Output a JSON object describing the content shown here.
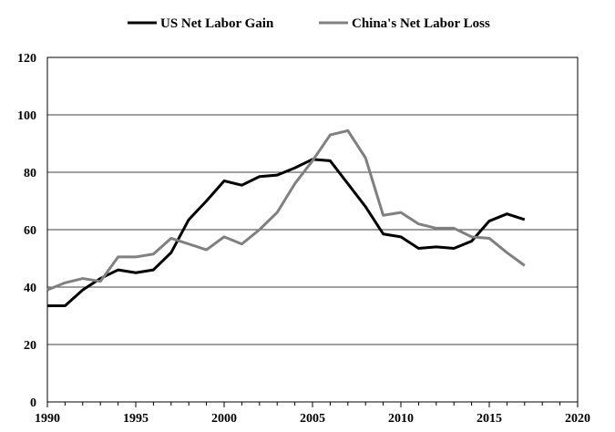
{
  "chart_data": {
    "type": "line",
    "title": "",
    "xlabel": "",
    "ylabel": "",
    "xlim": [
      1990,
      2020
    ],
    "ylim": [
      0,
      120
    ],
    "x_ticks": [
      1990,
      1995,
      2000,
      2005,
      2010,
      2015,
      2020
    ],
    "y_ticks": [
      0,
      20,
      40,
      60,
      80,
      100,
      120
    ],
    "x_tick_labels": [
      "1990",
      "1995",
      "2000",
      "2005",
      "2010",
      "2015",
      "2020"
    ],
    "y_tick_labels": [
      "0",
      "20",
      "40",
      "60",
      "80",
      "100",
      "120"
    ],
    "grid": "horizontal",
    "legend_position": "top",
    "x": [
      1990,
      1991,
      1992,
      1993,
      1994,
      1995,
      1996,
      1997,
      1998,
      1999,
      2000,
      2001,
      2002,
      2003,
      2004,
      2005,
      2006,
      2007,
      2008,
      2009,
      2010,
      2011,
      2012,
      2013,
      2014,
      2015,
      2016,
      2017
    ],
    "series": [
      {
        "name": "US Net Labor Gain",
        "color": "#000000",
        "values": [
          33.5,
          33.5,
          39,
          43,
          46,
          45,
          46,
          52,
          63.5,
          70,
          77,
          75.5,
          78.5,
          79,
          81.5,
          84.5,
          84,
          76,
          68,
          58.5,
          57.5,
          53.5,
          54,
          53.5,
          56,
          63,
          65.5,
          63.5
        ]
      },
      {
        "name": "China's Net Labor Loss",
        "color": "#808080",
        "values": [
          39,
          41.5,
          43,
          42,
          50.5,
          50.5,
          51.5,
          57,
          55,
          53,
          57.5,
          55,
          60,
          66,
          76,
          84,
          93,
          94.5,
          85,
          65,
          66,
          62,
          60.5,
          60.5,
          57.5,
          57,
          52,
          47.5
        ]
      }
    ]
  }
}
